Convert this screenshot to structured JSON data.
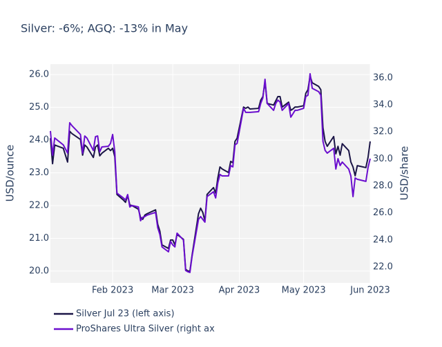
{
  "chart_data": {
    "type": "line",
    "title": "Silver: -6%; AGQ: -13% in May",
    "y_label": "USD/ounce",
    "y2_label": "USD/share",
    "x": [
      "2023-01-03",
      "2023-01-04",
      "2023-01-05",
      "2023-01-09",
      "2023-01-11",
      "2023-01-12",
      "2023-01-13",
      "2023-01-17",
      "2023-01-18",
      "2023-01-19",
      "2023-01-20",
      "2023-01-23",
      "2023-01-24",
      "2023-01-25",
      "2023-01-26",
      "2023-01-27",
      "2023-01-30",
      "2023-01-31",
      "2023-02-01",
      "2023-02-02",
      "2023-02-03",
      "2023-02-06",
      "2023-02-07",
      "2023-02-08",
      "2023-02-09",
      "2023-02-10",
      "2023-02-13",
      "2023-02-14",
      "2023-02-15",
      "2023-02-16",
      "2023-02-17",
      "2023-02-21",
      "2023-02-22",
      "2023-02-23",
      "2023-02-24",
      "2023-02-27",
      "2023-02-28",
      "2023-03-01",
      "2023-03-02",
      "2023-03-03",
      "2023-03-06",
      "2023-03-07",
      "2023-03-08",
      "2023-03-09",
      "2023-03-10",
      "2023-03-13",
      "2023-03-14",
      "2023-03-15",
      "2023-03-16",
      "2023-03-17",
      "2023-03-20",
      "2023-03-21",
      "2023-03-22",
      "2023-03-23",
      "2023-03-24",
      "2023-03-27",
      "2023-03-28",
      "2023-03-29",
      "2023-03-30",
      "2023-03-31",
      "2023-04-03",
      "2023-04-04",
      "2023-04-05",
      "2023-04-06",
      "2023-04-10",
      "2023-04-11",
      "2023-04-12",
      "2023-04-13",
      "2023-04-14",
      "2023-04-17",
      "2023-04-18",
      "2023-04-19",
      "2023-04-20",
      "2023-04-21",
      "2023-04-24",
      "2023-04-25",
      "2023-04-26",
      "2023-04-27",
      "2023-04-28",
      "2023-05-01",
      "2023-05-02",
      "2023-05-03",
      "2023-05-04",
      "2023-05-05",
      "2023-05-08",
      "2023-05-09",
      "2023-05-10",
      "2023-05-11",
      "2023-05-12",
      "2023-05-15",
      "2023-05-16",
      "2023-05-17",
      "2023-05-18",
      "2023-05-19",
      "2023-05-22",
      "2023-05-23",
      "2023-05-24",
      "2023-05-25",
      "2023-05-26",
      "2023-05-30",
      "2023-05-31",
      "2023-06-01"
    ],
    "series": [
      {
        "name": "Silver Jul 23 (left axis)",
        "color": "#1a1446",
        "axis": "y",
        "values": [
          24.06,
          23.28,
          23.85,
          23.75,
          23.33,
          24.27,
          24.2,
          24.02,
          23.54,
          23.85,
          23.79,
          23.47,
          23.79,
          23.85,
          23.52,
          23.6,
          23.75,
          23.68,
          23.75,
          23.49,
          22.34,
          22.17,
          22.1,
          22.31,
          22.02,
          22.0,
          21.89,
          21.64,
          21.58,
          21.71,
          21.75,
          21.87,
          21.43,
          21.22,
          20.8,
          20.69,
          20.95,
          20.95,
          20.8,
          21.12,
          20.97,
          20.06,
          20.0,
          20.0,
          20.48,
          21.75,
          21.92,
          21.79,
          21.54,
          22.34,
          22.55,
          22.38,
          22.84,
          23.18,
          23.12,
          23.01,
          23.35,
          23.31,
          23.96,
          24.06,
          25.01,
          24.97,
          25.01,
          24.95,
          24.97,
          25.22,
          25.33,
          25.79,
          25.12,
          25.07,
          25.2,
          25.33,
          25.33,
          25.01,
          25.16,
          24.91,
          24.95,
          25.01,
          25.01,
          25.05,
          25.43,
          25.54,
          25.96,
          25.75,
          25.64,
          25.54,
          24.38,
          23.96,
          23.81,
          24.11,
          23.58,
          23.81,
          23.54,
          23.89,
          23.68,
          23.33,
          23.18,
          22.91,
          23.22,
          23.16,
          23.47,
          23.96
        ]
      },
      {
        "name": "ProShares Ultra Silver (right ax",
        "color": "#6a0dce",
        "axis": "y2",
        "values": [
          32.07,
          30.28,
          31.55,
          31.04,
          30.43,
          32.68,
          32.47,
          31.81,
          30.43,
          31.7,
          31.55,
          30.63,
          31.65,
          31.7,
          30.53,
          30.89,
          30.94,
          31.15,
          31.81,
          30.53,
          27.47,
          27.11,
          26.96,
          27.36,
          26.44,
          26.55,
          26.44,
          25.42,
          25.68,
          25.73,
          25.83,
          26.04,
          24.91,
          24.4,
          23.48,
          23.12,
          23.89,
          23.63,
          23.48,
          24.5,
          23.99,
          21.74,
          21.64,
          21.59,
          22.77,
          25.52,
          25.73,
          25.52,
          25.32,
          27.21,
          27.57,
          27.11,
          28.23,
          28.85,
          28.74,
          28.74,
          29.51,
          29.41,
          31.04,
          31.15,
          33.75,
          33.45,
          33.45,
          33.45,
          33.5,
          34.11,
          34.52,
          35.9,
          34.11,
          33.6,
          34.11,
          34.36,
          34.21,
          33.6,
          34.11,
          33.09,
          33.34,
          33.6,
          33.6,
          33.75,
          34.62,
          34.72,
          36.31,
          35.23,
          34.98,
          34.72,
          31.3,
          30.63,
          30.43,
          30.79,
          29.25,
          30.02,
          29.51,
          29.77,
          29.25,
          28.74,
          27.21,
          28.59,
          28.49,
          28.34,
          29.36,
          30.02
        ]
      }
    ],
    "xlim": [
      "2023-01-03",
      "2023-06-01"
    ],
    "xticks": [
      {
        "value": "2023-02-01",
        "label": "Feb 2023"
      },
      {
        "value": "2023-03-01",
        "label": "Mar 2023"
      },
      {
        "value": "2023-04-01",
        "label": "Apr 2023"
      },
      {
        "value": "2023-05-01",
        "label": "May 2023"
      },
      {
        "value": "2023-06-01",
        "label": "Jun 2023"
      }
    ],
    "ylim": [
      19.64,
      26.32
    ],
    "yticks": [
      {
        "value": 20,
        "label": "20.0"
      },
      {
        "value": 21,
        "label": "21.0"
      },
      {
        "value": 22,
        "label": "22.0"
      },
      {
        "value": 23,
        "label": "23.0"
      },
      {
        "value": 24,
        "label": "24.0"
      },
      {
        "value": 25,
        "label": "25.0"
      },
      {
        "value": 26,
        "label": "26.0"
      }
    ],
    "y2lim": [
      20.82,
      37.02
    ],
    "y2ticks": [
      {
        "value": 22,
        "label": "22.0"
      },
      {
        "value": 24,
        "label": "24.0"
      },
      {
        "value": 26,
        "label": "26.0"
      },
      {
        "value": 28,
        "label": "28.0"
      },
      {
        "value": 30,
        "label": "30.0"
      },
      {
        "value": 32,
        "label": "32.0"
      },
      {
        "value": 34,
        "label": "34.0"
      },
      {
        "value": 36,
        "label": "36.0"
      }
    ],
    "grid": true
  }
}
